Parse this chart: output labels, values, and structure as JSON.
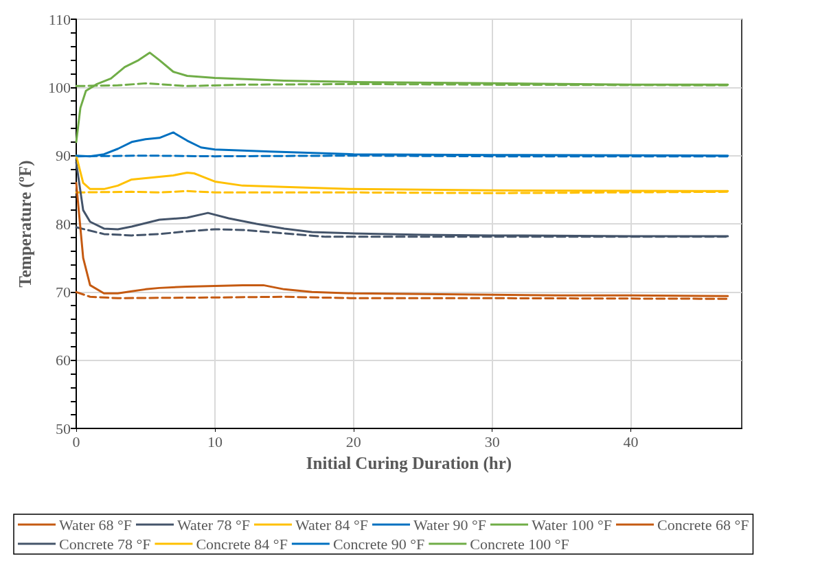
{
  "chart_data": {
    "type": "line",
    "xlabel": "Initial Curing Duration (hr)",
    "ylabel": "Temperature (ºF)",
    "xlim": [
      0,
      48
    ],
    "xticks": [
      0,
      10,
      20,
      30,
      40
    ],
    "ylim": [
      50,
      110
    ],
    "yticks": [
      50,
      60,
      70,
      80,
      90,
      100,
      110
    ],
    "grid": true,
    "legend": "bottom",
    "marker": "none",
    "series": [
      {
        "name": "Water 68 °F",
        "color": "#c55a11",
        "line_style": "dashed",
        "x": [
          0,
          1,
          3,
          10,
          15,
          20,
          30,
          47
        ],
        "values": [
          70,
          69.3,
          69.1,
          69.2,
          69.3,
          69.1,
          69.1,
          69.0
        ]
      },
      {
        "name": "Water 78 °F",
        "color": "#44546a",
        "line_style": "dashed",
        "x": [
          0,
          2,
          4,
          6,
          8,
          10,
          12,
          15,
          18,
          25,
          47
        ],
        "values": [
          79.5,
          78.5,
          78.3,
          78.5,
          78.9,
          79.2,
          79.1,
          78.6,
          78.1,
          78.1,
          78.1
        ]
      },
      {
        "name": "Water 84 °F",
        "color": "#ffc000",
        "line_style": "dashed",
        "x": [
          0,
          4,
          6,
          8,
          10,
          15,
          20,
          30,
          47
        ],
        "values": [
          84.6,
          84.7,
          84.6,
          84.8,
          84.6,
          84.6,
          84.6,
          84.5,
          84.7
        ]
      },
      {
        "name": "Water 90 °F",
        "color": "#0070c0",
        "line_style": "dashed",
        "x": [
          0,
          5,
          10,
          20,
          30,
          47
        ],
        "values": [
          89.9,
          90.0,
          89.9,
          90.0,
          89.9,
          89.9
        ]
      },
      {
        "name": "Water 100 °F",
        "color": "#70ad47",
        "line_style": "dashed",
        "x": [
          0,
          3,
          5,
          8,
          12,
          20,
          30,
          47
        ],
        "values": [
          100.2,
          100.3,
          100.6,
          100.2,
          100.4,
          100.5,
          100.4,
          100.3
        ]
      },
      {
        "name": "Concrete 68 °F",
        "color": "#c55a11",
        "line_style": "solid",
        "x": [
          0,
          0.5,
          1,
          2,
          3,
          4,
          5,
          6,
          8,
          10,
          12,
          13.5,
          15,
          17,
          20,
          25,
          30,
          35,
          40,
          47
        ],
        "values": [
          86,
          75,
          71,
          69.8,
          69.8,
          70.1,
          70.4,
          70.6,
          70.8,
          70.9,
          71.0,
          71.0,
          70.4,
          70.0,
          69.8,
          69.7,
          69.6,
          69.5,
          69.5,
          69.4
        ]
      },
      {
        "name": "Concrete 78 °F",
        "color": "#44546a",
        "line_style": "solid",
        "x": [
          0,
          0.5,
          1,
          2,
          3,
          4,
          5,
          6,
          8,
          9.5,
          11,
          13,
          15,
          17,
          20,
          25,
          30,
          40,
          47
        ],
        "values": [
          89,
          82,
          80.3,
          79.3,
          79.2,
          79.6,
          80.1,
          80.6,
          80.9,
          81.6,
          80.8,
          80.0,
          79.3,
          78.8,
          78.6,
          78.4,
          78.3,
          78.2,
          78.2
        ]
      },
      {
        "name": "Concrete 84 °F",
        "color": "#ffc000",
        "line_style": "solid",
        "x": [
          0,
          0.5,
          1,
          2,
          3,
          4,
          6,
          7,
          8,
          8.5,
          10,
          12,
          15,
          20,
          30,
          47
        ],
        "values": [
          90,
          86,
          85.1,
          85.1,
          85.6,
          86.5,
          86.9,
          87.1,
          87.5,
          87.4,
          86.2,
          85.6,
          85.4,
          85.1,
          84.9,
          84.8
        ]
      },
      {
        "name": "Concrete 90 °F",
        "color": "#0070c0",
        "line_style": "solid",
        "x": [
          0,
          1,
          2,
          3,
          4,
          5,
          6,
          7,
          8,
          9,
          10,
          14,
          20,
          30,
          47
        ],
        "values": [
          90,
          89.9,
          90.2,
          91,
          92,
          92.4,
          92.6,
          93.4,
          92.2,
          91.2,
          90.9,
          90.6,
          90.2,
          90.1,
          90.0
        ]
      },
      {
        "name": "Concrete 100 °F",
        "color": "#70ad47",
        "line_style": "solid",
        "x": [
          0,
          0.3,
          0.7,
          1.5,
          2.5,
          3.5,
          4.5,
          5.3,
          6,
          7,
          8,
          10,
          15,
          20,
          30,
          40,
          47
        ],
        "values": [
          92,
          97,
          99.5,
          100.5,
          101.3,
          103.0,
          104.0,
          105.1,
          104,
          102.3,
          101.7,
          101.4,
          101.0,
          100.8,
          100.6,
          100.4,
          100.4
        ]
      }
    ]
  }
}
